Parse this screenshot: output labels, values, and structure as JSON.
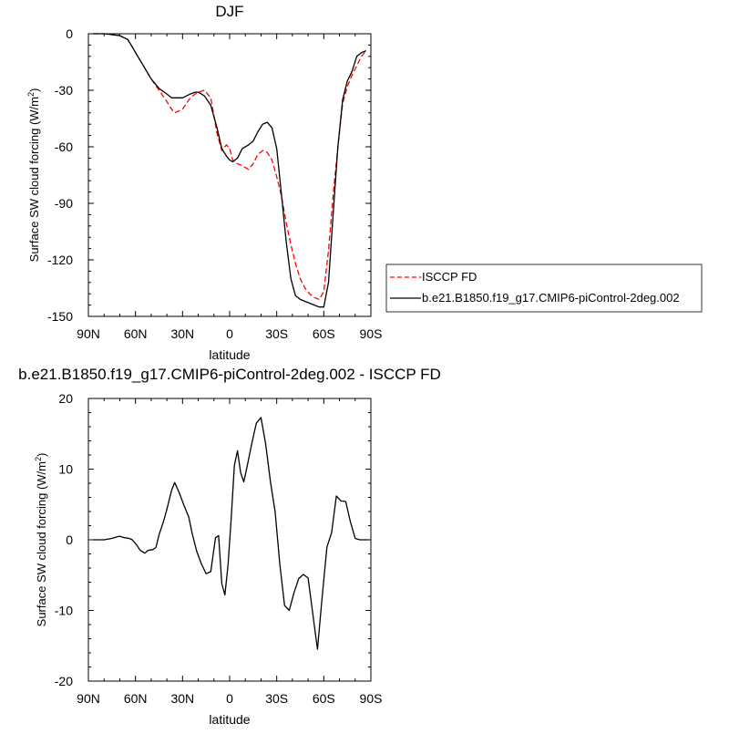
{
  "chart_data": [
    {
      "type": "line",
      "title": "DJF",
      "xlabel": "latitude",
      "ylabel_main": "Surface SW cloud forcing (W/m",
      "ylabel_sup": "2",
      "ylabel_close": ")",
      "xlim": [
        90,
        -90
      ],
      "ylim": [
        -150,
        0
      ],
      "xticks": [
        90,
        60,
        30,
        0,
        -30,
        -60,
        -90
      ],
      "xtick_labels": [
        "90N",
        "60N",
        "30N",
        "0",
        "30S",
        "60S",
        "90S"
      ],
      "yticks": [
        0,
        -30,
        -60,
        -90,
        -120,
        -150
      ],
      "ytick_labels": [
        "0",
        "-30",
        "-60",
        "-90",
        "-120",
        "-150"
      ],
      "legend": "right",
      "series": [
        {
          "name": "ISCCP FD",
          "color": "#ff0000",
          "dash": "dashed",
          "x": [
            87,
            85,
            80,
            75,
            70,
            65,
            62,
            60,
            55,
            50,
            45,
            40,
            37,
            35,
            30,
            25,
            22,
            20,
            16,
            12,
            8,
            5,
            2,
            0,
            -2,
            -5,
            -8,
            -12,
            -15,
            -18,
            -21,
            -24,
            -27,
            -30,
            -33,
            -36,
            -39,
            -42,
            -45,
            -48,
            -51,
            -54,
            -57,
            -60,
            -63,
            -66,
            -69,
            -72,
            -75,
            -78,
            -81,
            -84,
            -87
          ],
          "y": [
            0,
            0,
            0,
            -0.5,
            -1,
            -3,
            -7,
            -10,
            -17,
            -24,
            -30,
            -36,
            -40,
            -42,
            -40,
            -34,
            -32,
            -31,
            -30,
            -34,
            -53,
            -62,
            -59,
            -61,
            -67,
            -69,
            -70,
            -72,
            -69,
            -64,
            -62,
            -63,
            -67,
            -76,
            -86,
            -100,
            -112,
            -122,
            -130,
            -135,
            -138,
            -140,
            -141,
            -137,
            -115,
            -85,
            -60,
            -37,
            -28,
            -22,
            -17,
            -12,
            -9
          ]
        },
        {
          "name": "b.e21.B1850.f19_g17.CMIP6-piControl-2deg.002",
          "color": "#000000",
          "dash": "solid",
          "x": [
            87,
            85,
            80,
            75,
            70,
            65,
            62,
            60,
            55,
            50,
            45,
            40,
            37,
            35,
            30,
            25,
            22,
            20,
            16,
            12,
            8,
            5,
            2,
            0,
            -2,
            -5,
            -8,
            -12,
            -15,
            -18,
            -21,
            -24,
            -27,
            -30,
            -33,
            -36,
            -39,
            -42,
            -45,
            -48,
            -51,
            -54,
            -57,
            -60,
            -63,
            -66,
            -69,
            -72,
            -75,
            -78,
            -81,
            -84,
            -87
          ],
          "y": [
            0,
            0,
            0,
            -0.5,
            -1,
            -3,
            -7,
            -10,
            -17,
            -24,
            -29,
            -32,
            -34,
            -34,
            -34,
            -32,
            -31,
            -31,
            -33,
            -38,
            -50,
            -61,
            -65,
            -67,
            -68,
            -66,
            -61,
            -59,
            -57,
            -52,
            -48,
            -47,
            -50,
            -61,
            -85,
            -110,
            -130,
            -139,
            -141,
            -142,
            -143,
            -144,
            -145,
            -145,
            -132,
            -95,
            -60,
            -35,
            -25,
            -20,
            -12,
            -10,
            -9
          ]
        }
      ]
    },
    {
      "type": "line",
      "title": "b.e21.B1850.f19_g17.CMIP6-piControl-2deg.002 - ISCCP FD",
      "xlabel": "latitude",
      "ylabel_main": "Surface SW cloud forcing (W/m",
      "ylabel_sup": "2",
      "ylabel_close": ")",
      "xlim": [
        90,
        -90
      ],
      "ylim": [
        -20,
        20
      ],
      "xticks": [
        90,
        60,
        30,
        0,
        -30,
        -60,
        -90
      ],
      "xtick_labels": [
        "90N",
        "60N",
        "30N",
        "0",
        "30S",
        "60S",
        "90S"
      ],
      "yticks": [
        20,
        10,
        0,
        -10,
        -20
      ],
      "ytick_labels": [
        "20",
        "10",
        "0",
        "-10",
        "-20"
      ],
      "series": [
        {
          "color": "#000000",
          "dash": "solid",
          "x": [
            87,
            80,
            75,
            72,
            70,
            67,
            64,
            62,
            59,
            57,
            54,
            52,
            49,
            47,
            45,
            42,
            40,
            37,
            35,
            32,
            29,
            26,
            24,
            21,
            18,
            15,
            12,
            9,
            7,
            5,
            3,
            1,
            -1,
            -3,
            -5,
            -7,
            -9,
            -11,
            -14,
            -17,
            -20,
            -23,
            -26,
            -29,
            -32,
            -35,
            -38,
            -41,
            -44,
            -47,
            -50,
            -53,
            -56,
            -59,
            -62,
            -65,
            -68,
            -71,
            -74,
            -77,
            -80,
            -83,
            -86,
            -88
          ],
          "y": [
            0,
            0,
            0.2,
            0.4,
            0.5,
            0.3,
            0.2,
            0,
            -0.8,
            -1.5,
            -1.9,
            -1.5,
            -1.4,
            -1.1,
            0.7,
            2.7,
            4.3,
            7,
            8.1,
            6.6,
            4.8,
            3.2,
            1,
            -1.6,
            -3.4,
            -4.8,
            -4.5,
            0.3,
            0.6,
            -6.2,
            -7.8,
            -3.5,
            3,
            10.5,
            12.6,
            9.5,
            8.2,
            10.2,
            13.5,
            16.5,
            17.3,
            13.5,
            8.2,
            4,
            -3.5,
            -9.3,
            -10,
            -7.5,
            -5.5,
            -4.9,
            -5.4,
            -10.5,
            -15.5,
            -8,
            -1,
            1,
            6.2,
            5.5,
            5.4,
            2.5,
            0.2,
            0,
            0,
            0
          ]
        }
      ]
    }
  ]
}
